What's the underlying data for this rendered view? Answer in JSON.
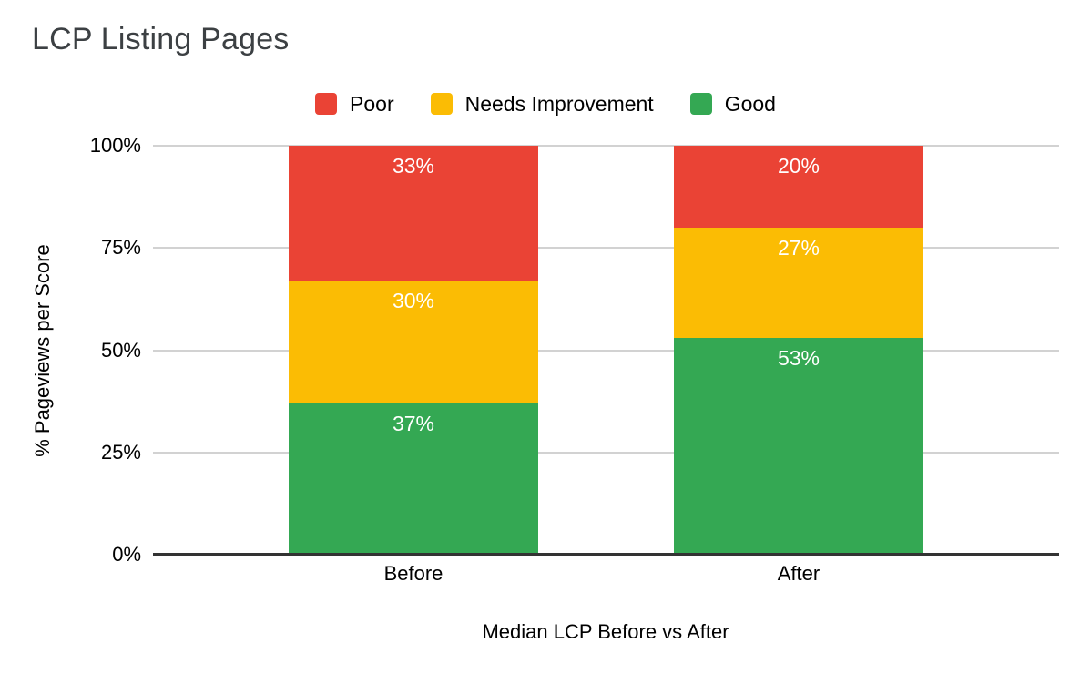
{
  "chart_data": {
    "type": "bar",
    "stacked": true,
    "title": "LCP Listing Pages",
    "categories": [
      "Before",
      "After"
    ],
    "series": [
      {
        "name": "Good",
        "color": "#34A853",
        "values": [
          37,
          53
        ]
      },
      {
        "name": "Needs Improvement",
        "color": "#FBBC04",
        "values": [
          30,
          27
        ]
      },
      {
        "name": "Poor",
        "color": "#EA4335",
        "values": [
          33,
          20
        ]
      }
    ],
    "stack_order_bottom_to_top": [
      "Good",
      "Needs Improvement",
      "Poor"
    ],
    "data_label_format": "{value}%",
    "legend": {
      "position": "top",
      "items": [
        "Poor",
        "Needs Improvement",
        "Good"
      ]
    },
    "xlabel": "Median LCP Before vs After",
    "ylabel": "% Pageviews per Score",
    "y_axis": {
      "min": 0,
      "max": 100,
      "ticks": [
        {
          "value": 0,
          "label": "0%"
        },
        {
          "value": 25,
          "label": "25%"
        },
        {
          "value": 50,
          "label": "50%"
        },
        {
          "value": 75,
          "label": "75%"
        },
        {
          "value": 100,
          "label": "100%"
        }
      ]
    },
    "grid": true
  },
  "style": {
    "background": "#FFFFFF",
    "title_color": "#3C4043",
    "axis_text_color": "#000000",
    "data_label_color": "#FFFFFF",
    "gridline_color": "#D2D2D2",
    "baseline_color": "#333333"
  }
}
